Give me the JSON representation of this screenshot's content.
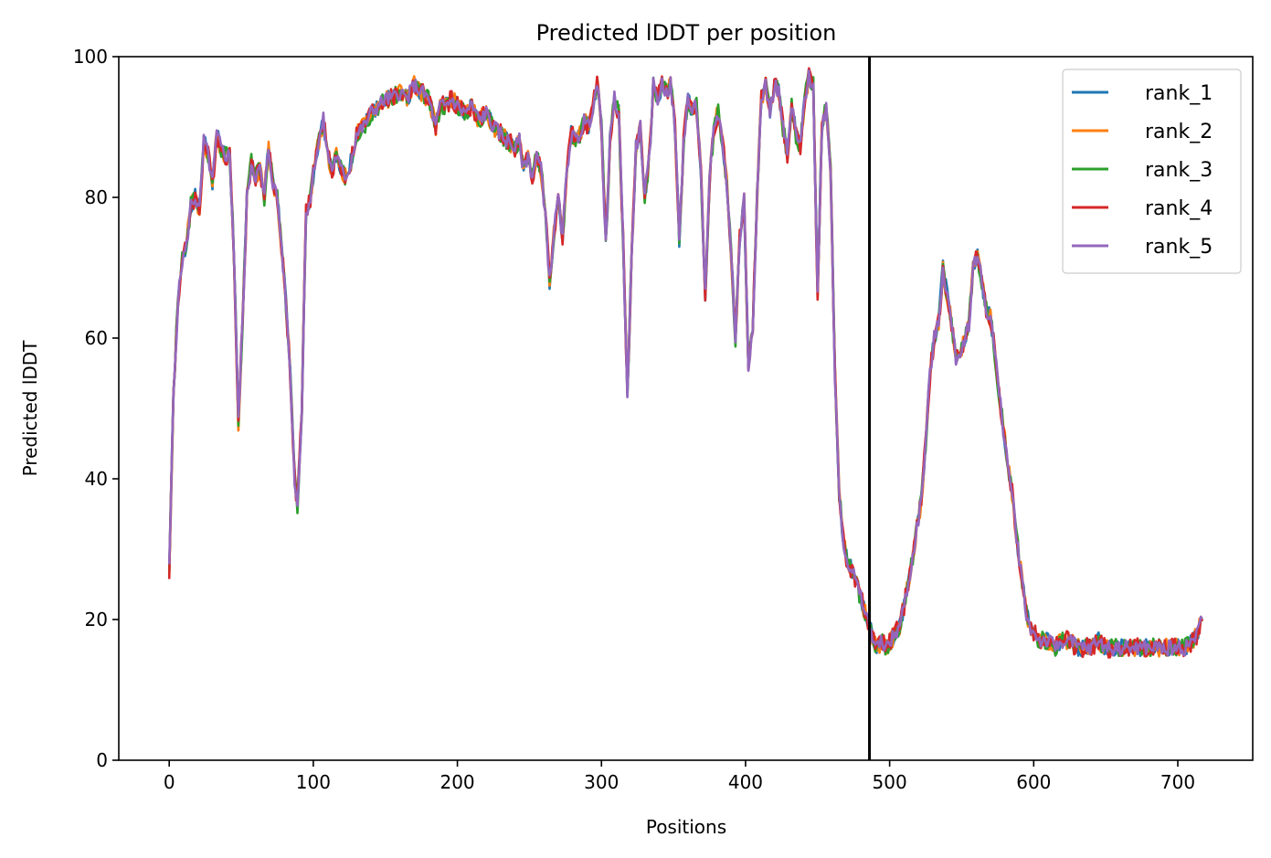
{
  "chart_data": {
    "type": "line",
    "title": "Predicted lDDT per position",
    "xlabel": "Positions",
    "ylabel": "Predicted lDDT",
    "xlim": [
      -35,
      752
    ],
    "ylim": [
      0,
      100
    ],
    "xticks": [
      0,
      100,
      200,
      300,
      400,
      500,
      600,
      700
    ],
    "yticks": [
      0,
      20,
      40,
      60,
      80,
      100
    ],
    "grid": false,
    "legend_position": "top-right",
    "vline": 486,
    "colors": {
      "rank_1": "#1f77b4",
      "rank_2": "#ff7f0e",
      "rank_3": "#2ca02c",
      "rank_4": "#d62728",
      "rank_5": "#9467bd",
      "divider": "#000000"
    },
    "base": [
      [
        0,
        27
      ],
      [
        3,
        52
      ],
      [
        6,
        65
      ],
      [
        9,
        71
      ],
      [
        12,
        73
      ],
      [
        15,
        79
      ],
      [
        18,
        80
      ],
      [
        21,
        78
      ],
      [
        24,
        88
      ],
      [
        27,
        86
      ],
      [
        30,
        82
      ],
      [
        33,
        89
      ],
      [
        36,
        87
      ],
      [
        39,
        86
      ],
      [
        42,
        86
      ],
      [
        45,
        72
      ],
      [
        48,
        48
      ],
      [
        51,
        63
      ],
      [
        54,
        80
      ],
      [
        57,
        85
      ],
      [
        60,
        83
      ],
      [
        63,
        84
      ],
      [
        66,
        80
      ],
      [
        69,
        87
      ],
      [
        72,
        82
      ],
      [
        75,
        80
      ],
      [
        78,
        73
      ],
      [
        81,
        65
      ],
      [
        84,
        55
      ],
      [
        87,
        40
      ],
      [
        89,
        36
      ],
      [
        92,
        50
      ],
      [
        95,
        78
      ],
      [
        98,
        80
      ],
      [
        101,
        85
      ],
      [
        104,
        88
      ],
      [
        107,
        91
      ],
      [
        110,
        86
      ],
      [
        113,
        84
      ],
      [
        116,
        86
      ],
      [
        119,
        84
      ],
      [
        122,
        83
      ],
      [
        125,
        84
      ],
      [
        130,
        89
      ],
      [
        135,
        90
      ],
      [
        140,
        92
      ],
      [
        145,
        93
      ],
      [
        150,
        94
      ],
      [
        155,
        94
      ],
      [
        160,
        95
      ],
      [
        165,
        94
      ],
      [
        170,
        96
      ],
      [
        175,
        95
      ],
      [
        180,
        94
      ],
      [
        185,
        90
      ],
      [
        188,
        93
      ],
      [
        192,
        93
      ],
      [
        196,
        94
      ],
      [
        200,
        93
      ],
      [
        205,
        92
      ],
      [
        210,
        93
      ],
      [
        215,
        91
      ],
      [
        220,
        92
      ],
      [
        225,
        90
      ],
      [
        230,
        89
      ],
      [
        235,
        88
      ],
      [
        240,
        87
      ],
      [
        243,
        88
      ],
      [
        246,
        84
      ],
      [
        249,
        86
      ],
      [
        252,
        83
      ],
      [
        255,
        86
      ],
      [
        258,
        84
      ],
      [
        261,
        78
      ],
      [
        264,
        68
      ],
      [
        267,
        75
      ],
      [
        270,
        80
      ],
      [
        273,
        74
      ],
      [
        276,
        84
      ],
      [
        279,
        89
      ],
      [
        282,
        88
      ],
      [
        285,
        89
      ],
      [
        288,
        91
      ],
      [
        291,
        90
      ],
      [
        294,
        93
      ],
      [
        297,
        96
      ],
      [
        300,
        90
      ],
      [
        303,
        73
      ],
      [
        306,
        88
      ],
      [
        309,
        94
      ],
      [
        312,
        92
      ],
      [
        315,
        74
      ],
      [
        318,
        52
      ],
      [
        321,
        72
      ],
      [
        324,
        87
      ],
      [
        327,
        90
      ],
      [
        330,
        80
      ],
      [
        333,
        85
      ],
      [
        336,
        96
      ],
      [
        339,
        94
      ],
      [
        342,
        96
      ],
      [
        345,
        95
      ],
      [
        348,
        96
      ],
      [
        351,
        90
      ],
      [
        354,
        74
      ],
      [
        357,
        88
      ],
      [
        360,
        94
      ],
      [
        363,
        92
      ],
      [
        366,
        93
      ],
      [
        369,
        84
      ],
      [
        372,
        66
      ],
      [
        375,
        82
      ],
      [
        378,
        90
      ],
      [
        381,
        92
      ],
      [
        384,
        88
      ],
      [
        387,
        82
      ],
      [
        390,
        72
      ],
      [
        393,
        60
      ],
      [
        396,
        74
      ],
      [
        399,
        80
      ],
      [
        402,
        56
      ],
      [
        405,
        62
      ],
      [
        408,
        80
      ],
      [
        411,
        94
      ],
      [
        414,
        96
      ],
      [
        417,
        92
      ],
      [
        420,
        96
      ],
      [
        423,
        95
      ],
      [
        426,
        90
      ],
      [
        429,
        86
      ],
      [
        432,
        93
      ],
      [
        435,
        89
      ],
      [
        438,
        87
      ],
      [
        441,
        94
      ],
      [
        444,
        97
      ],
      [
        447,
        96
      ],
      [
        450,
        66
      ],
      [
        453,
        90
      ],
      [
        456,
        93
      ],
      [
        459,
        84
      ],
      [
        462,
        55
      ],
      [
        465,
        38
      ],
      [
        468,
        31
      ],
      [
        471,
        28
      ],
      [
        474,
        27
      ],
      [
        477,
        25
      ],
      [
        480,
        23
      ],
      [
        483,
        21
      ],
      [
        486,
        19
      ],
      [
        489,
        17
      ],
      [
        492,
        16
      ],
      [
        495,
        17
      ],
      [
        498,
        16
      ],
      [
        501,
        17
      ],
      [
        504,
        18
      ],
      [
        507,
        19
      ],
      [
        510,
        22
      ],
      [
        513,
        25
      ],
      [
        516,
        29
      ],
      [
        519,
        33
      ],
      [
        522,
        37
      ],
      [
        525,
        45
      ],
      [
        528,
        55
      ],
      [
        531,
        60
      ],
      [
        534,
        62
      ],
      [
        537,
        70
      ],
      [
        540,
        66
      ],
      [
        543,
        62
      ],
      [
        546,
        57
      ],
      [
        549,
        58
      ],
      [
        552,
        60
      ],
      [
        555,
        62
      ],
      [
        558,
        70
      ],
      [
        561,
        72
      ],
      [
        564,
        68
      ],
      [
        567,
        64
      ],
      [
        570,
        63
      ],
      [
        573,
        58
      ],
      [
        576,
        52
      ],
      [
        579,
        47
      ],
      [
        582,
        42
      ],
      [
        585,
        38
      ],
      [
        588,
        32
      ],
      [
        591,
        27
      ],
      [
        594,
        22
      ],
      [
        597,
        19
      ],
      [
        600,
        18
      ],
      [
        605,
        17
      ],
      [
        610,
        17
      ],
      [
        615,
        16
      ],
      [
        620,
        17
      ],
      [
        625,
        17
      ],
      [
        630,
        16
      ],
      [
        635,
        16
      ],
      [
        640,
        16
      ],
      [
        645,
        17
      ],
      [
        650,
        16
      ],
      [
        655,
        16
      ],
      [
        660,
        16
      ],
      [
        665,
        16
      ],
      [
        670,
        16
      ],
      [
        675,
        16
      ],
      [
        680,
        16
      ],
      [
        685,
        16
      ],
      [
        690,
        16
      ],
      [
        695,
        16
      ],
      [
        700,
        16
      ],
      [
        705,
        16
      ],
      [
        710,
        17
      ],
      [
        714,
        18
      ],
      [
        717,
        21
      ]
    ],
    "series": [
      {
        "name": "rank_1",
        "seed": 1,
        "amp": 1.2
      },
      {
        "name": "rank_2",
        "seed": 2,
        "amp": 1.3
      },
      {
        "name": "rank_3",
        "seed": 3,
        "amp": 1.3
      },
      {
        "name": "rank_4",
        "seed": 4,
        "amp": 1.4
      },
      {
        "name": "rank_5",
        "seed": 5,
        "amp": 1.1
      }
    ]
  }
}
